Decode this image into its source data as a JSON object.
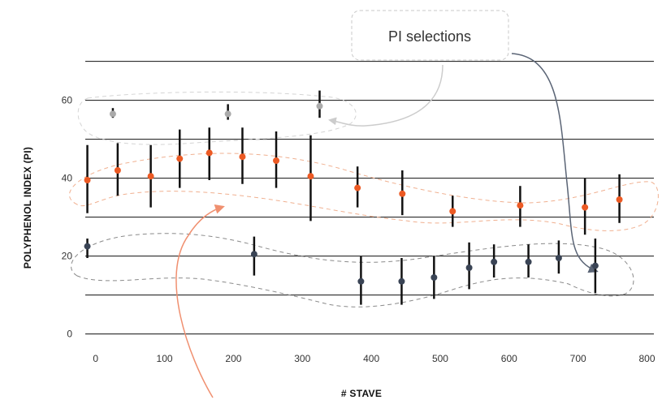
{
  "chart_data": {
    "type": "scatter",
    "xlabel": "# STAVE",
    "ylabel": "POLYPHENOL INDEX (PI)",
    "xlim": [
      -15,
      810
    ],
    "ylim": [
      -3,
      67
    ],
    "xticks": [
      0,
      100,
      200,
      300,
      400,
      500,
      600,
      700,
      800
    ],
    "yticks": [
      0,
      20,
      40,
      60
    ],
    "gridlines_y": [
      0,
      10,
      20,
      30,
      40,
      50,
      60,
      70
    ],
    "grid": true,
    "legend": "none",
    "annotation": "PI selections",
    "series": [
      {
        "color": "#aaaaaa",
        "points": [
          {
            "x": 25,
            "y": 56.5,
            "lo": 55.5,
            "hi": 58.0
          },
          {
            "x": 192,
            "y": 56.5,
            "lo": 55.0,
            "hi": 59.0
          },
          {
            "x": 325,
            "y": 58.5,
            "lo": 55.5,
            "hi": 62.5
          }
        ]
      },
      {
        "color": "#ec5a24",
        "points": [
          {
            "x": -12,
            "y": 39.5,
            "lo": 31.0,
            "hi": 48.5
          },
          {
            "x": 32,
            "y": 42.0,
            "lo": 35.5,
            "hi": 49.0
          },
          {
            "x": 80,
            "y": 40.5,
            "lo": 32.5,
            "hi": 48.5
          },
          {
            "x": 122,
            "y": 45.0,
            "lo": 37.5,
            "hi": 52.5
          },
          {
            "x": 165,
            "y": 46.5,
            "lo": 39.5,
            "hi": 53.0
          },
          {
            "x": 213,
            "y": 45.5,
            "lo": 38.5,
            "hi": 53.0
          },
          {
            "x": 262,
            "y": 44.5,
            "lo": 37.5,
            "hi": 52.0
          },
          {
            "x": 312,
            "y": 40.5,
            "lo": 29.0,
            "hi": 51.0
          },
          {
            "x": 380,
            "y": 37.5,
            "lo": 32.5,
            "hi": 43.0
          },
          {
            "x": 445,
            "y": 36.0,
            "lo": 30.5,
            "hi": 42.0
          },
          {
            "x": 518,
            "y": 31.5,
            "lo": 27.5,
            "hi": 35.5
          },
          {
            "x": 616,
            "y": 33.0,
            "lo": 27.5,
            "hi": 38.0
          },
          {
            "x": 710,
            "y": 32.5,
            "lo": 25.5,
            "hi": 40.0
          },
          {
            "x": 760,
            "y": 34.5,
            "lo": 28.5,
            "hi": 41.0
          }
        ]
      },
      {
        "color": "#3a4455",
        "points": [
          {
            "x": -12,
            "y": 22.5,
            "lo": 19.5,
            "hi": 24.5
          },
          {
            "x": 230,
            "y": 20.5,
            "lo": 15.0,
            "hi": 25.0
          },
          {
            "x": 385,
            "y": 13.5,
            "lo": 7.5,
            "hi": 20.0
          },
          {
            "x": 444,
            "y": 13.5,
            "lo": 7.5,
            "hi": 19.5
          },
          {
            "x": 491,
            "y": 14.5,
            "lo": 9.0,
            "hi": 20.0
          },
          {
            "x": 542,
            "y": 17.0,
            "lo": 11.5,
            "hi": 23.5
          },
          {
            "x": 578,
            "y": 18.5,
            "lo": 14.5,
            "hi": 23.0
          },
          {
            "x": 628,
            "y": 18.5,
            "lo": 14.5,
            "hi": 23.0
          },
          {
            "x": 672,
            "y": 19.5,
            "lo": 15.5,
            "hi": 24.0
          },
          {
            "x": 725,
            "y": 17.5,
            "lo": 10.5,
            "hi": 24.5
          }
        ]
      }
    ]
  }
}
